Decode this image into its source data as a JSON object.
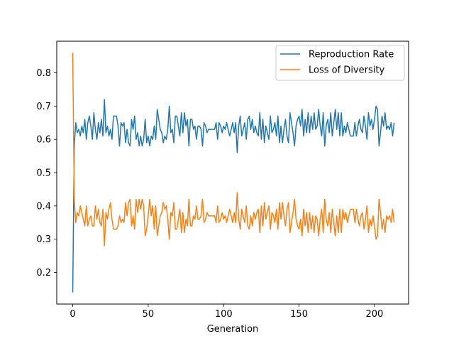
{
  "chart_data": {
    "type": "line",
    "title": "",
    "xlabel": "Generation",
    "ylabel": "",
    "xlim": [
      -10.6,
      222.6
    ],
    "ylim": [
      0.105,
      0.895
    ],
    "xticks": [
      0,
      50,
      100,
      150,
      200
    ],
    "yticks": [
      0.2,
      0.3,
      0.4,
      0.5,
      0.6,
      0.7,
      0.8
    ],
    "grid": false,
    "legend_position": "upper right",
    "series": [
      {
        "name": "Reproduction Rate",
        "color": "#1f77b4",
        "values": [
          0.14,
          0.58,
          0.65,
          0.62,
          0.63,
          0.61,
          0.64,
          0.62,
          0.66,
          0.6,
          0.65,
          0.67,
          0.64,
          0.6,
          0.68,
          0.63,
          0.6,
          0.65,
          0.62,
          0.66,
          0.61,
          0.72,
          0.62,
          0.64,
          0.61,
          0.63,
          0.6,
          0.67,
          0.67,
          0.67,
          0.64,
          0.58,
          0.65,
          0.64,
          0.65,
          0.59,
          0.63,
          0.59,
          0.58,
          0.66,
          0.63,
          0.67,
          0.6,
          0.62,
          0.58,
          0.61,
          0.58,
          0.6,
          0.66,
          0.59,
          0.61,
          0.58,
          0.61,
          0.6,
          0.64,
          0.6,
          0.69,
          0.66,
          0.63,
          0.62,
          0.59,
          0.61,
          0.6,
          0.63,
          0.7,
          0.62,
          0.63,
          0.59,
          0.67,
          0.67,
          0.64,
          0.61,
          0.68,
          0.62,
          0.68,
          0.64,
          0.66,
          0.58,
          0.66,
          0.66,
          0.63,
          0.64,
          0.6,
          0.64,
          0.64,
          0.63,
          0.58,
          0.65,
          0.64,
          0.62,
          0.63,
          0.63,
          0.63,
          0.63,
          0.63,
          0.65,
          0.6,
          0.65,
          0.64,
          0.62,
          0.64,
          0.63,
          0.65,
          0.63,
          0.61,
          0.63,
          0.65,
          0.62,
          0.65,
          0.56,
          0.64,
          0.67,
          0.61,
          0.63,
          0.65,
          0.6,
          0.66,
          0.67,
          0.63,
          0.66,
          0.62,
          0.64,
          0.62,
          0.61,
          0.68,
          0.6,
          0.66,
          0.59,
          0.64,
          0.62,
          0.6,
          0.67,
          0.62,
          0.63,
          0.65,
          0.61,
          0.67,
          0.59,
          0.64,
          0.59,
          0.63,
          0.66,
          0.61,
          0.59,
          0.68,
          0.65,
          0.62,
          0.58,
          0.64,
          0.66,
          0.67,
          0.64,
          0.69,
          0.61,
          0.66,
          0.62,
          0.68,
          0.62,
          0.67,
          0.63,
          0.68,
          0.63,
          0.64,
          0.69,
          0.64,
          0.61,
          0.68,
          0.58,
          0.64,
          0.66,
          0.62,
          0.68,
          0.61,
          0.65,
          0.69,
          0.63,
          0.68,
          0.61,
          0.68,
          0.61,
          0.64,
          0.62,
          0.65,
          0.63,
          0.61,
          0.61,
          0.61,
          0.65,
          0.61,
          0.64,
          0.66,
          0.63,
          0.62,
          0.67,
          0.64,
          0.6,
          0.68,
          0.64,
          0.66,
          0.63,
          0.66,
          0.7,
          0.69,
          0.58,
          0.62,
          0.67,
          0.64,
          0.68,
          0.63,
          0.64,
          0.63,
          0.65,
          0.61,
          0.65
        ]
      },
      {
        "name": "Loss of Diversity",
        "color": "#ff7f0e",
        "values": [
          0.86,
          0.42,
          0.35,
          0.38,
          0.37,
          0.4,
          0.38,
          0.36,
          0.34,
          0.4,
          0.34,
          0.36,
          0.37,
          0.34,
          0.34,
          0.4,
          0.36,
          0.39,
          0.35,
          0.34,
          0.39,
          0.28,
          0.38,
          0.36,
          0.39,
          0.41,
          0.36,
          0.33,
          0.33,
          0.33,
          0.34,
          0.37,
          0.35,
          0.36,
          0.35,
          0.41,
          0.37,
          0.41,
          0.42,
          0.34,
          0.37,
          0.33,
          0.42,
          0.38,
          0.42,
          0.39,
          0.42,
          0.4,
          0.31,
          0.33,
          0.37,
          0.42,
          0.37,
          0.4,
          0.33,
          0.4,
          0.31,
          0.34,
          0.37,
          0.38,
          0.41,
          0.39,
          0.4,
          0.36,
          0.3,
          0.38,
          0.37,
          0.41,
          0.33,
          0.33,
          0.36,
          0.39,
          0.32,
          0.38,
          0.32,
          0.36,
          0.34,
          0.42,
          0.34,
          0.34,
          0.37,
          0.36,
          0.4,
          0.36,
          0.36,
          0.37,
          0.42,
          0.35,
          0.36,
          0.38,
          0.37,
          0.37,
          0.37,
          0.37,
          0.37,
          0.35,
          0.4,
          0.35,
          0.36,
          0.38,
          0.36,
          0.37,
          0.35,
          0.37,
          0.39,
          0.37,
          0.35,
          0.38,
          0.35,
          0.44,
          0.36,
          0.33,
          0.39,
          0.37,
          0.35,
          0.4,
          0.34,
          0.33,
          0.37,
          0.34,
          0.38,
          0.36,
          0.38,
          0.39,
          0.32,
          0.4,
          0.34,
          0.41,
          0.36,
          0.38,
          0.4,
          0.33,
          0.38,
          0.37,
          0.35,
          0.39,
          0.33,
          0.41,
          0.36,
          0.41,
          0.37,
          0.34,
          0.39,
          0.41,
          0.32,
          0.35,
          0.38,
          0.42,
          0.36,
          0.34,
          0.33,
          0.36,
          0.31,
          0.39,
          0.34,
          0.38,
          0.32,
          0.38,
          0.33,
          0.37,
          0.32,
          0.37,
          0.36,
          0.31,
          0.36,
          0.39,
          0.32,
          0.42,
          0.36,
          0.34,
          0.38,
          0.32,
          0.39,
          0.35,
          0.31,
          0.37,
          0.32,
          0.39,
          0.32,
          0.39,
          0.36,
          0.38,
          0.35,
          0.37,
          0.39,
          0.39,
          0.39,
          0.35,
          0.39,
          0.36,
          0.34,
          0.37,
          0.38,
          0.33,
          0.36,
          0.4,
          0.32,
          0.36,
          0.34,
          0.37,
          0.34,
          0.3,
          0.31,
          0.42,
          0.38,
          0.33,
          0.36,
          0.32,
          0.37,
          0.36,
          0.37,
          0.35,
          0.39,
          0.35
        ]
      }
    ]
  }
}
